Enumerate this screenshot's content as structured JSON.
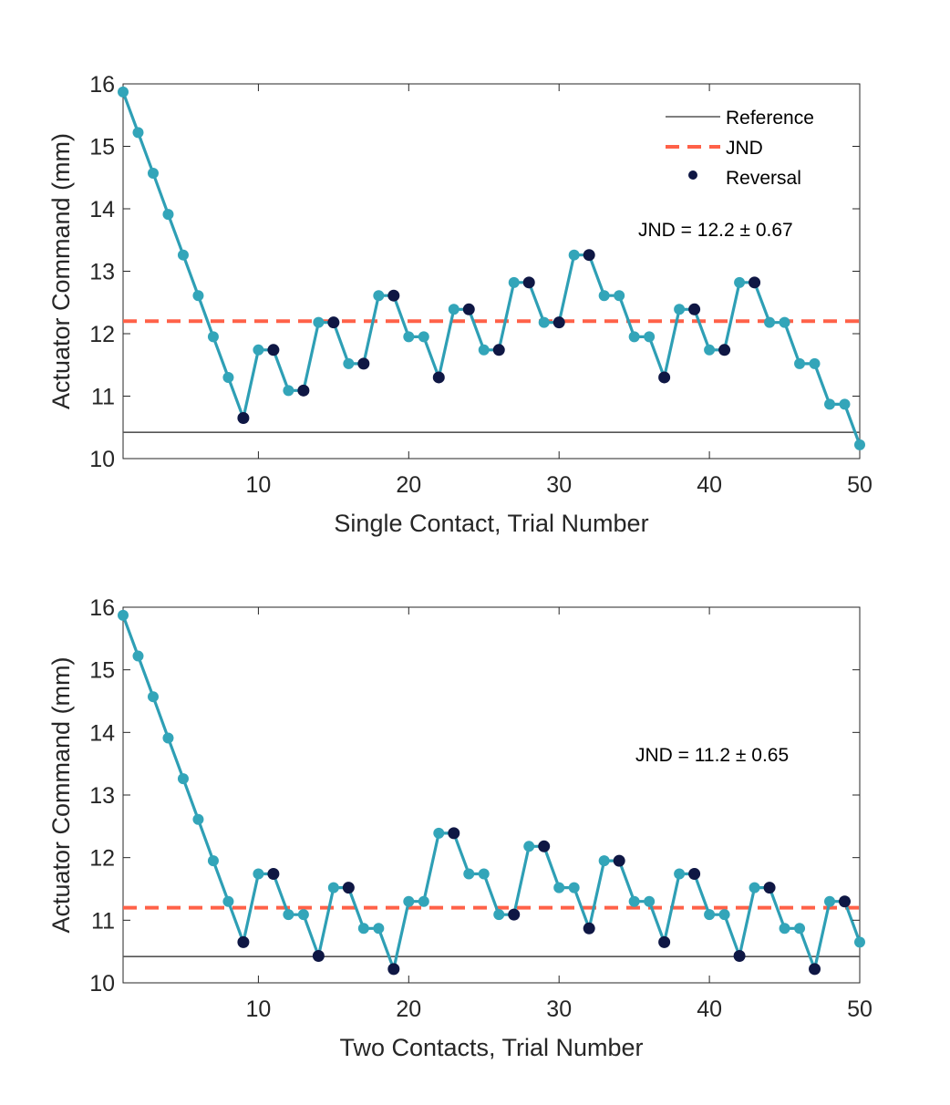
{
  "chart_data": [
    {
      "type": "line",
      "title": "",
      "xlabel": "Single Contact, Trial Number",
      "ylabel": "Actuator Command (mm)",
      "xlim": [
        1,
        50
      ],
      "ylim": [
        10,
        16
      ],
      "xticks": [
        10,
        20,
        30,
        40,
        50
      ],
      "yticks": [
        10,
        11,
        12,
        13,
        14,
        15,
        16
      ],
      "grid": false,
      "legend": {
        "placement": "top-right",
        "entries": [
          "Reference",
          "JND",
          "Reversal"
        ]
      },
      "annotation": "JND = 12.2 ± 0.67",
      "reference": 10.42,
      "jnd": 12.2,
      "x": [
        1,
        2,
        3,
        4,
        5,
        6,
        7,
        8,
        9,
        10,
        11,
        12,
        13,
        14,
        15,
        16,
        17,
        18,
        19,
        20,
        21,
        22,
        23,
        24,
        25,
        26,
        27,
        28,
        29,
        30,
        31,
        32,
        33,
        34,
        35,
        36,
        37,
        38,
        39,
        40,
        41,
        42,
        43,
        44,
        45,
        46,
        47,
        48,
        49,
        50
      ],
      "values": [
        15.87,
        15.22,
        14.57,
        13.91,
        13.26,
        12.61,
        11.95,
        11.3,
        10.65,
        11.74,
        11.74,
        11.09,
        11.09,
        12.18,
        12.18,
        11.52,
        11.52,
        12.61,
        12.61,
        11.95,
        11.95,
        11.3,
        12.39,
        12.39,
        11.74,
        11.74,
        12.82,
        12.82,
        12.18,
        12.18,
        13.26,
        13.26,
        12.61,
        12.61,
        11.95,
        11.95,
        11.3,
        12.39,
        12.39,
        11.74,
        11.74,
        12.82,
        12.82,
        12.18,
        12.18,
        11.52,
        11.52,
        10.87,
        10.87,
        10.22
      ],
      "reversal_trials": [
        9,
        11,
        13,
        15,
        17,
        19,
        22,
        24,
        26,
        28,
        30,
        32,
        37,
        39,
        41,
        43
      ]
    },
    {
      "type": "line",
      "title": "",
      "xlabel": "Two Contacts, Trial Number",
      "ylabel": "Actuator Command (mm)",
      "xlim": [
        1,
        50
      ],
      "ylim": [
        10,
        16
      ],
      "xticks": [
        10,
        20,
        30,
        40,
        50
      ],
      "yticks": [
        10,
        11,
        12,
        13,
        14,
        15,
        16
      ],
      "grid": false,
      "annotation": "JND = 11.2 ± 0.65",
      "reference": 10.42,
      "jnd": 11.2,
      "x": [
        1,
        2,
        3,
        4,
        5,
        6,
        7,
        8,
        9,
        10,
        11,
        12,
        13,
        14,
        15,
        16,
        17,
        18,
        19,
        20,
        21,
        22,
        23,
        24,
        25,
        26,
        27,
        28,
        29,
        30,
        31,
        32,
        33,
        34,
        35,
        36,
        37,
        38,
        39,
        40,
        41,
        42,
        43,
        44,
        45,
        46,
        47,
        48,
        49,
        50
      ],
      "values": [
        15.87,
        15.22,
        14.57,
        13.91,
        13.26,
        12.61,
        11.95,
        11.3,
        10.65,
        11.74,
        11.74,
        11.09,
        11.09,
        10.43,
        11.52,
        11.52,
        10.87,
        10.87,
        10.22,
        11.3,
        11.3,
        12.39,
        12.39,
        11.74,
        11.74,
        11.09,
        11.09,
        12.18,
        12.18,
        11.52,
        11.52,
        10.87,
        11.95,
        11.95,
        11.3,
        11.3,
        10.65,
        11.74,
        11.74,
        11.09,
        11.09,
        10.43,
        11.52,
        11.52,
        10.87,
        10.87,
        10.22,
        11.3,
        11.3,
        10.65
      ],
      "reversal_trials": [
        9,
        11,
        14,
        16,
        19,
        23,
        27,
        29,
        32,
        34,
        37,
        39,
        42,
        44,
        47,
        49
      ]
    }
  ],
  "colors": {
    "line": "#2e9fb5",
    "marker": "#33a5b9",
    "reversal": "#0f1744",
    "reference": "#555555",
    "jnd": "#ff6148",
    "axis": "#262626",
    "text": "#262626"
  }
}
